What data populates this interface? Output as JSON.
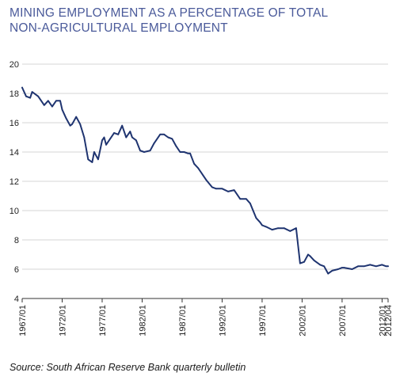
{
  "title": "MINING EMPLOYMENT AS A PERCENTAGE OF TOTAL NON-AGRICULTURAL EMPLOYMENT",
  "source": "Source: South African Reserve Bank quarterly bulletin",
  "colors": {
    "title": "#4a5a9a",
    "line": "#1f3470",
    "grid": "#d4d4d4",
    "axis": "#333333"
  },
  "chart_data": {
    "type": "line",
    "title": "MINING EMPLOYMENT AS A PERCENTAGE OF TOTAL NON-AGRICULTURAL EMPLOYMENT",
    "xlabel": "",
    "ylabel": "",
    "ylim": [
      4,
      20
    ],
    "xlim": [
      "1967/01",
      "2012/04"
    ],
    "y_ticks": [
      4,
      6,
      8,
      10,
      12,
      14,
      16,
      18,
      20
    ],
    "x_tick_labels": [
      "1967/01",
      "1972/01",
      "1977/01",
      "1982/01",
      "1987/01",
      "1992/01",
      "1997/01",
      "2002/01",
      "2007/01",
      "2012/01",
      "2012/04"
    ],
    "grid": "horizontal",
    "series": [
      {
        "x": [
          "1967/01",
          "1967/03",
          "1968/01",
          "1968/02",
          "1969/01",
          "1969/04",
          "1970/02",
          "1970/04",
          "1971/02",
          "1971/04",
          "1972/01",
          "1972/03",
          "1973/01",
          "1973/02",
          "1973/04",
          "1974/02",
          "1974/04",
          "1975/02",
          "1975/04",
          "1976/01",
          "1976/03",
          "1977/01",
          "1977/02",
          "1977/03",
          "1978/01",
          "1978/03",
          "1979/01",
          "1979/03",
          "1980/01",
          "1980/03",
          "1980/04",
          "1981/02",
          "1981/04",
          "1982/02",
          "1983/01",
          "1983/03",
          "1984/02",
          "1984/04",
          "1985/02",
          "1985/04",
          "1986/02",
          "1986/04",
          "1987/02",
          "1987/04",
          "1988/01",
          "1988/03",
          "1989/01",
          "1990/01",
          "1990/04",
          "1991/02",
          "1992/01",
          "1992/04",
          "1993/03",
          "1994/02",
          "1995/01",
          "1995/03",
          "1996/02",
          "1996/04",
          "1997/01",
          "1997/03",
          "1998/02",
          "1999/01",
          "1999/04",
          "2000/03",
          "2001/02",
          "2001/04",
          "2002/02",
          "2002/04",
          "2003/01",
          "2003/03",
          "2004/02",
          "2004/04",
          "2005/02",
          "2005/04",
          "2006/03",
          "2007/01",
          "2007/02",
          "2008/02",
          "2009/01",
          "2009/04",
          "2010/03",
          "2011/02",
          "2012/01",
          "2012/03",
          "2012/04"
        ],
        "values": [
          18.4,
          17.8,
          17.7,
          18.1,
          17.8,
          17.2,
          17.5,
          17.1,
          17.5,
          17.5,
          16.9,
          16.3,
          15.8,
          15.9,
          16.4,
          15.9,
          15.0,
          13.5,
          13.3,
          14.0,
          13.5,
          14.8,
          15.0,
          14.5,
          14.9,
          15.3,
          15.2,
          15.8,
          15.0,
          15.4,
          15.0,
          14.8,
          14.1,
          14.0,
          14.1,
          14.6,
          15.2,
          15.2,
          15.0,
          14.9,
          14.4,
          14.0,
          14.0,
          13.9,
          13.9,
          13.2,
          12.9,
          12.1,
          11.6,
          11.5,
          11.5,
          11.3,
          11.4,
          10.8,
          10.8,
          10.5,
          9.5,
          9.2,
          9.0,
          8.9,
          8.7,
          8.8,
          8.8,
          8.6,
          8.8,
          6.4,
          6.5,
          7.0,
          6.9,
          6.6,
          6.3,
          6.2,
          5.7,
          5.9,
          6.0,
          6.1,
          6.1,
          6.0,
          6.2,
          6.2,
          6.3,
          6.2,
          6.3,
          6.2,
          6.2
        ]
      }
    ]
  }
}
